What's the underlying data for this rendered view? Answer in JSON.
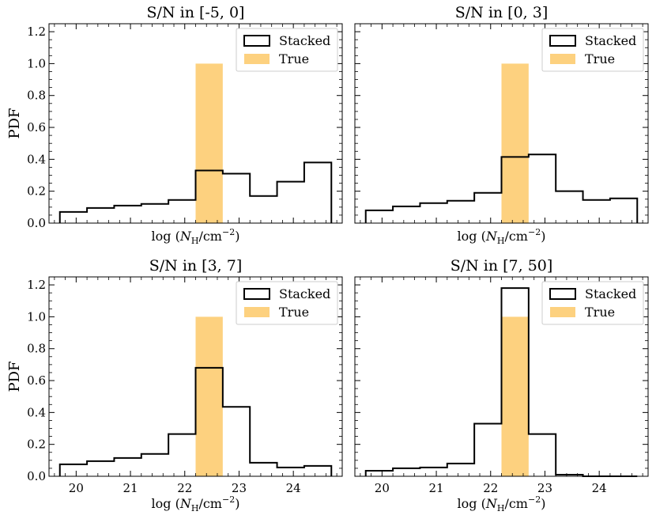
{
  "colors": {
    "stacked": "#000000",
    "true": "#fdd17f",
    "background": "#ffffff"
  },
  "chart_data": [
    {
      "type": "bar",
      "title": "S/N in [-5, 0]",
      "xlabel": "log (N_H/cm^-2)",
      "xlabel_parts": {
        "prefix": "log (",
        "sym": "N",
        "sub": "H",
        "mid": "/cm",
        "sup": "−2",
        "suffix": ")"
      },
      "ylabel": "PDF",
      "xlim": [
        19.5,
        24.9
      ],
      "ylim": [
        0,
        1.25
      ],
      "xticks": [
        20,
        21,
        22,
        23,
        24
      ],
      "yticks": [
        0.0,
        0.2,
        0.4,
        0.6,
        0.8,
        1.0,
        1.2
      ],
      "show_xticklabels": false,
      "show_ylabel": true,
      "show_yticklabels": true,
      "legend": [
        "Stacked",
        "True"
      ],
      "legend_position": "top-right",
      "bin_edges": [
        19.7,
        20.2,
        20.7,
        21.2,
        21.7,
        22.2,
        22.7,
        23.2,
        23.7,
        24.2,
        24.7
      ],
      "series": [
        {
          "name": "Stacked",
          "kind": "step",
          "values": [
            0.07,
            0.095,
            0.11,
            0.12,
            0.145,
            0.33,
            0.31,
            0.17,
            0.26,
            0.38
          ]
        },
        {
          "name": "True",
          "kind": "bar",
          "x0": 22.2,
          "x1": 22.7,
          "value": 1.0
        }
      ]
    },
    {
      "type": "bar",
      "title": "S/N in [0, 3]",
      "xlabel": "log (N_H/cm^-2)",
      "xlabel_parts": {
        "prefix": "log (",
        "sym": "N",
        "sub": "H",
        "mid": "/cm",
        "sup": "−2",
        "suffix": ")"
      },
      "ylabel": "",
      "xlim": [
        19.5,
        24.9
      ],
      "ylim": [
        0,
        1.25
      ],
      "xticks": [
        20,
        21,
        22,
        23,
        24
      ],
      "yticks": [
        0.0,
        0.2,
        0.4,
        0.6,
        0.8,
        1.0,
        1.2
      ],
      "show_xticklabels": false,
      "show_ylabel": false,
      "show_yticklabels": false,
      "legend": [
        "Stacked",
        "True"
      ],
      "legend_position": "top-right",
      "bin_edges": [
        19.7,
        20.2,
        20.7,
        21.2,
        21.7,
        22.2,
        22.7,
        23.2,
        23.7,
        24.2,
        24.7
      ],
      "series": [
        {
          "name": "Stacked",
          "kind": "step",
          "values": [
            0.08,
            0.105,
            0.125,
            0.14,
            0.19,
            0.415,
            0.43,
            0.2,
            0.145,
            0.155
          ]
        },
        {
          "name": "True",
          "kind": "bar",
          "x0": 22.2,
          "x1": 22.7,
          "value": 1.0
        }
      ]
    },
    {
      "type": "bar",
      "title": "S/N in [3, 7]",
      "xlabel": "log (N_H/cm^-2)",
      "xlabel_parts": {
        "prefix": "log (",
        "sym": "N",
        "sub": "H",
        "mid": "/cm",
        "sup": "−2",
        "suffix": ")"
      },
      "ylabel": "PDF",
      "xlim": [
        19.5,
        24.9
      ],
      "ylim": [
        0,
        1.25
      ],
      "xticks": [
        20,
        21,
        22,
        23,
        24
      ],
      "yticks": [
        0.0,
        0.2,
        0.4,
        0.6,
        0.8,
        1.0,
        1.2
      ],
      "show_xticklabels": true,
      "show_ylabel": true,
      "show_yticklabels": true,
      "legend": [
        "Stacked",
        "True"
      ],
      "legend_position": "top-right",
      "bin_edges": [
        19.7,
        20.2,
        20.7,
        21.2,
        21.7,
        22.2,
        22.7,
        23.2,
        23.7,
        24.2,
        24.7
      ],
      "series": [
        {
          "name": "Stacked",
          "kind": "step",
          "values": [
            0.075,
            0.095,
            0.115,
            0.14,
            0.265,
            0.68,
            0.435,
            0.085,
            0.055,
            0.065
          ]
        },
        {
          "name": "True",
          "kind": "bar",
          "x0": 22.2,
          "x1": 22.7,
          "value": 1.0
        }
      ]
    },
    {
      "type": "bar",
      "title": "S/N in [7, 50]",
      "xlabel": "log (N_H/cm^-2)",
      "xlabel_parts": {
        "prefix": "log (",
        "sym": "N",
        "sub": "H",
        "mid": "/cm",
        "sup": "−2",
        "suffix": ")"
      },
      "ylabel": "",
      "xlim": [
        19.5,
        24.9
      ],
      "ylim": [
        0,
        1.25
      ],
      "xticks": [
        20,
        21,
        22,
        23,
        24
      ],
      "yticks": [
        0.0,
        0.2,
        0.4,
        0.6,
        0.8,
        1.0,
        1.2
      ],
      "show_xticklabels": true,
      "show_ylabel": false,
      "show_yticklabels": false,
      "legend": [
        "Stacked",
        "True"
      ],
      "legend_position": "top-right",
      "bin_edges": [
        19.7,
        20.2,
        20.7,
        21.2,
        21.7,
        22.2,
        22.7,
        23.2,
        23.7,
        24.2,
        24.7
      ],
      "series": [
        {
          "name": "Stacked",
          "kind": "step",
          "values": [
            0.035,
            0.05,
            0.055,
            0.08,
            0.33,
            1.18,
            0.265,
            0.01,
            0.0,
            0.0
          ]
        },
        {
          "name": "True",
          "kind": "bar",
          "x0": 22.2,
          "x1": 22.7,
          "value": 1.0
        }
      ]
    }
  ]
}
